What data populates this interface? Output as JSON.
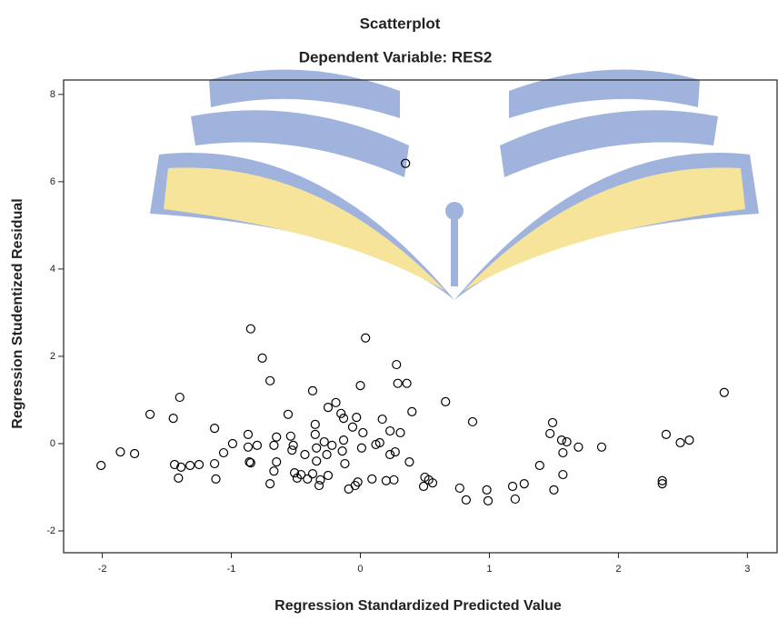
{
  "chart_data": {
    "type": "scatter",
    "title": "Scatterplot",
    "subtitle": "Dependent Variable: RES2",
    "x_label": "Regression Standardized Predicted Value",
    "y_label": "Regression Studentized Residual",
    "color": "#000000",
    "xlim": [
      -2.3,
      3.23
    ],
    "ylim": [
      -2.5,
      8.33
    ],
    "xticks": [
      -2,
      -1,
      0,
      1,
      2,
      3
    ],
    "yticks": [
      -2,
      0,
      2,
      4,
      6,
      8
    ],
    "x": [
      -2.01,
      -1.86,
      -1.75,
      -1.63,
      -1.45,
      -1.4,
      -1.44,
      -1.41,
      -1.39,
      -1.32,
      -1.25,
      -1.13,
      -1.13,
      -1.12,
      -1.06,
      -0.99,
      -0.87,
      -0.85,
      -0.87,
      -0.86,
      -0.85,
      -0.8,
      -0.76,
      -0.7,
      -0.7,
      -0.67,
      -0.67,
      -0.65,
      -0.65,
      -0.56,
      -0.54,
      -0.53,
      -0.52,
      -0.51,
      -0.49,
      -0.46,
      -0.43,
      -0.41,
      -0.37,
      -0.37,
      -0.35,
      -0.35,
      -0.34,
      -0.34,
      -0.32,
      -0.31,
      -0.28,
      -0.26,
      -0.25,
      -0.25,
      -0.22,
      -0.19,
      -0.15,
      -0.13,
      -0.13,
      -0.14,
      -0.12,
      -0.09,
      -0.06,
      -0.04,
      -0.03,
      -0.02,
      0,
      0.01,
      0.02,
      0.04,
      0.09,
      0.12,
      0.15,
      0.17,
      0.2,
      0.23,
      0.23,
      0.26,
      0.27,
      0.28,
      0.29,
      0.31,
      0.35,
      0.36,
      0.38,
      0.4,
      0.49,
      0.5,
      0.53,
      0.56,
      0.66,
      0.87,
      0.77,
      0.82,
      0.98,
      0.99,
      1.18,
      1.2,
      1.27,
      1.39,
      1.49,
      1.47,
      1.5,
      1.56,
      1.57,
      1.57,
      1.6,
      1.69,
      1.87,
      2.34,
      2.34,
      2.37,
      2.48,
      2.55,
      2.82
    ],
    "values": [
      -0.5,
      -0.19,
      -0.23,
      0.67,
      0.58,
      1.06,
      -0.48,
      -0.79,
      -0.54,
      -0.5,
      -0.48,
      0.35,
      -0.46,
      -0.81,
      -0.21,
      0,
      0.21,
      2.63,
      -0.08,
      -0.42,
      -0.44,
      -0.04,
      1.96,
      1.44,
      -0.92,
      -0.04,
      -0.63,
      0.15,
      -0.42,
      0.67,
      0.17,
      -0.15,
      -0.04,
      -0.67,
      -0.79,
      -0.71,
      -0.25,
      -0.81,
      1.21,
      -0.69,
      0.44,
      0.21,
      -0.1,
      -0.4,
      -0.96,
      -0.83,
      0.04,
      -0.25,
      0.83,
      -0.73,
      -0.04,
      0.94,
      0.69,
      0.58,
      0.08,
      -0.17,
      -0.46,
      -1.04,
      0.38,
      -0.96,
      0.6,
      -0.88,
      1.33,
      -0.1,
      0.25,
      2.42,
      -0.81,
      -0.02,
      0.02,
      0.56,
      -0.85,
      -0.25,
      0.29,
      -0.83,
      -0.19,
      1.81,
      1.38,
      0.25,
      6.42,
      1.38,
      -0.42,
      0.73,
      -0.98,
      -0.77,
      -0.83,
      -0.9,
      0.96,
      0.5,
      -1.02,
      -1.29,
      -1.06,
      -1.31,
      -0.98,
      -1.27,
      -0.92,
      -0.5,
      0.48,
      0.23,
      -1.06,
      0.08,
      -0.21,
      -0.71,
      0.04,
      -0.08,
      -0.08,
      -0.85,
      -0.92,
      0.21,
      0.02,
      0.08,
      1.17
    ]
  }
}
